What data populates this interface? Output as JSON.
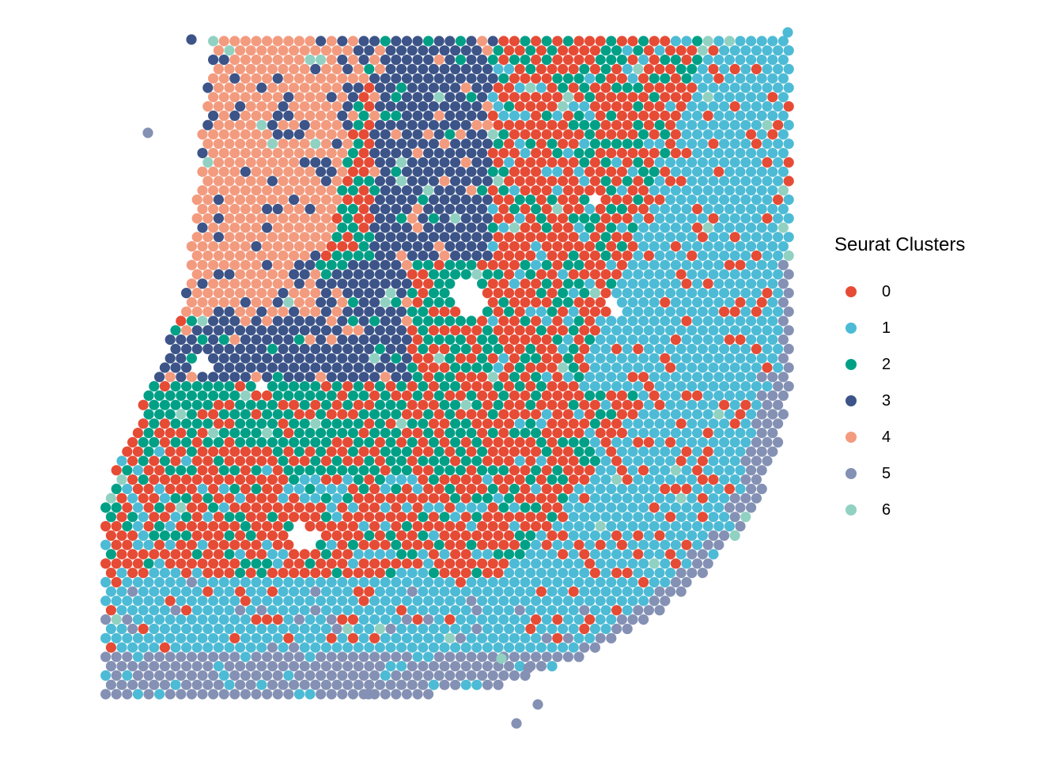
{
  "chart_data": {
    "type": "scatter",
    "subtype": "spatial spot plot",
    "title": "",
    "xlabel": "",
    "ylabel": "",
    "grid": false,
    "axes_visible": false,
    "legend": {
      "title": "Seurat Clusters",
      "placement": "right",
      "entries": [
        {
          "label": "0",
          "color": "#E64B35"
        },
        {
          "label": "1",
          "color": "#4DBBD5"
        },
        {
          "label": "2",
          "color": "#00A087"
        },
        {
          "label": "3",
          "color": "#3C5488"
        },
        {
          "label": "4",
          "color": "#F39B7F"
        },
        {
          "label": "5",
          "color": "#8491B4"
        },
        {
          "label": "6",
          "color": "#91D1C2"
        }
      ]
    },
    "note_regions": [
      {
        "cluster": "4",
        "region": "upper-left"
      },
      {
        "cluster": "3",
        "region": "upper-center band"
      },
      {
        "cluster": "2",
        "region": "center"
      },
      {
        "cluster": "0",
        "region": "center-right and lower-left"
      },
      {
        "cluster": "1",
        "region": "right edge and bottom"
      },
      {
        "cluster": "5",
        "region": "outer lower-right rim"
      },
      {
        "cluster": "6",
        "region": "scattered"
      }
    ]
  }
}
